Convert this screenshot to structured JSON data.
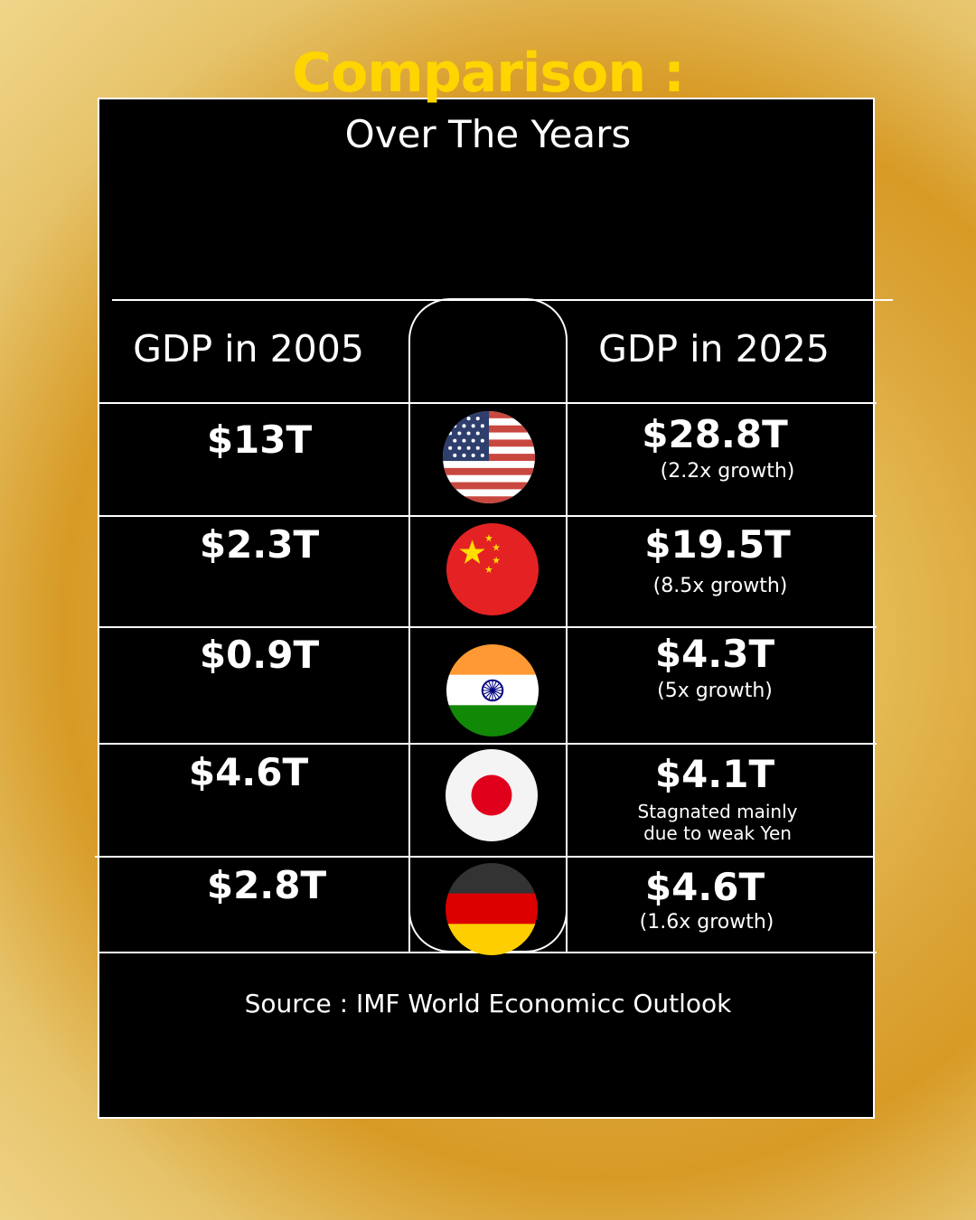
{
  "title": "Comparison :",
  "subtitle": "Over The Years",
  "columns": {
    "left": "GDP in 2005",
    "right": "GDP in 2025"
  },
  "rows": [
    {
      "flag_icon": "usa-flag-icon",
      "gdp_2005": "$13T",
      "gdp_2025": "$28.8T",
      "note": "(2.2x growth)"
    },
    {
      "flag_icon": "china-flag-icon",
      "gdp_2005": "$2.3T",
      "gdp_2025": "$19.5T",
      "note": "(8.5x growth)"
    },
    {
      "flag_icon": "india-flag-icon",
      "gdp_2005": "$0.9T",
      "gdp_2025": "$4.3T",
      "note": "(5x growth)"
    },
    {
      "flag_icon": "japan-flag-icon",
      "gdp_2005": "$4.6T",
      "gdp_2025": "$4.1T",
      "note_line1": "Stagnated mainly",
      "note_line2": "due to weak Yen"
    },
    {
      "flag_icon": "germany-flag-icon",
      "gdp_2005": "$2.8T",
      "gdp_2025": "$4.6T",
      "note": "(1.6x growth)"
    }
  ],
  "source": "Source : IMF World Economicc Outlook",
  "colors": {
    "accent": "#ffd500",
    "card": "#000000",
    "text": "#ffffff"
  }
}
